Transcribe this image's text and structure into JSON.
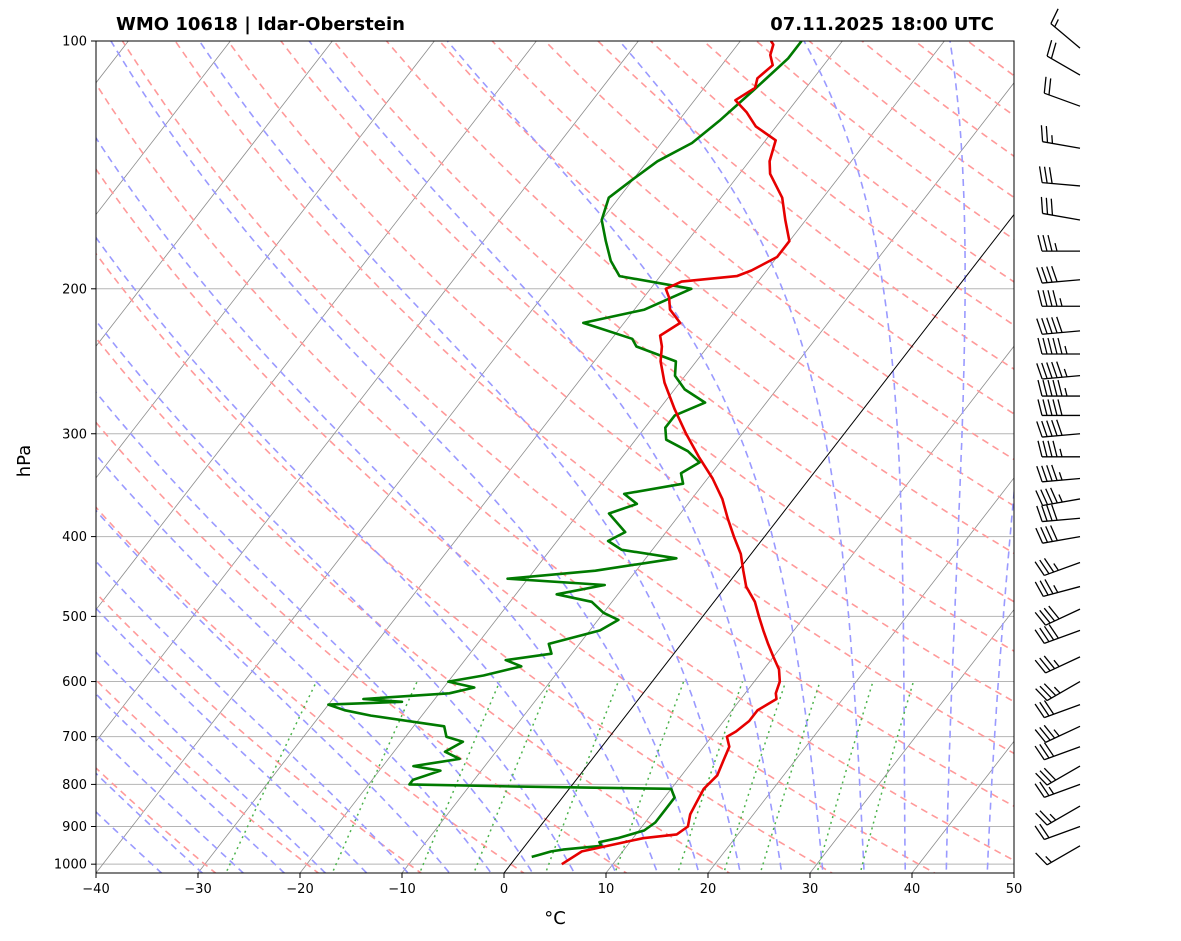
{
  "chart_data": {
    "type": "skew-t",
    "title_left": "WMO 10618 | Idar-Oberstein",
    "title_right": "07.11.2025 18:00 UTC",
    "xlabel": "°C",
    "ylabel": "hPa",
    "xlim": [
      -40,
      50
    ],
    "ylim": [
      1025,
      100
    ],
    "x_ticks": [
      -40,
      -30,
      -20,
      -10,
      0,
      10,
      20,
      30,
      40,
      50
    ],
    "y_ticks": [
      100,
      200,
      300,
      400,
      500,
      600,
      700,
      800,
      900,
      1000
    ],
    "y_scale": "log",
    "grid": true,
    "colors": {
      "temperature": "#e60000",
      "dewpoint": "#007a00",
      "dry_adiabats": "#ff9a9a",
      "moist_adiabats": "#9a9aff",
      "mixing_ratio": "#4cb34c",
      "isotherms": "#8c8c8c",
      "zero_isotherm": "#000000"
    },
    "series": [
      {
        "name": "Temperature",
        "points": [
          [
            1000,
            5
          ],
          [
            965,
            6
          ],
          [
            930,
            11
          ],
          [
            920,
            14
          ],
          [
            900,
            14.5
          ],
          [
            870,
            13.8
          ],
          [
            840,
            13.5
          ],
          [
            810,
            13.2
          ],
          [
            780,
            13.5
          ],
          [
            750,
            13
          ],
          [
            720,
            12.5
          ],
          [
            700,
            11.5
          ],
          [
            690,
            12
          ],
          [
            670,
            12.5
          ],
          [
            650,
            12.5
          ],
          [
            640,
            13
          ],
          [
            630,
            13.5
          ],
          [
            620,
            13
          ],
          [
            600,
            12.5
          ],
          [
            580,
            11.5
          ],
          [
            560,
            10
          ],
          [
            540,
            8.5
          ],
          [
            520,
            7
          ],
          [
            500,
            5.5
          ],
          [
            480,
            4
          ],
          [
            460,
            2
          ],
          [
            440,
            0.5
          ],
          [
            420,
            -1
          ],
          [
            400,
            -3
          ],
          [
            380,
            -5
          ],
          [
            360,
            -7
          ],
          [
            340,
            -9.5
          ],
          [
            320,
            -12.5
          ],
          [
            300,
            -15.5
          ],
          [
            280,
            -18.5
          ],
          [
            260,
            -21.5
          ],
          [
            245,
            -23.5
          ],
          [
            235,
            -24.5
          ],
          [
            228,
            -25.5
          ],
          [
            220,
            -24.5
          ],
          [
            212,
            -26.5
          ],
          [
            205,
            -27.5
          ],
          [
            200,
            -28.5
          ],
          [
            196,
            -27.5
          ],
          [
            193,
            -22.5
          ],
          [
            190,
            -21.5
          ],
          [
            183,
            -20
          ],
          [
            175,
            -20
          ],
          [
            165,
            -22
          ],
          [
            155,
            -24
          ],
          [
            145,
            -27
          ],
          [
            140,
            -28
          ],
          [
            132,
            -29
          ],
          [
            127,
            -32
          ],
          [
            122,
            -34
          ],
          [
            118,
            -36
          ],
          [
            114,
            -35
          ],
          [
            111,
            -35.5
          ],
          [
            107,
            -35
          ],
          [
            104,
            -36
          ],
          [
            101,
            -36.5
          ],
          [
            100,
            -37
          ]
        ]
      },
      {
        "name": "Dew point",
        "points": [
          [
            980,
            1.5
          ],
          [
            975,
            2
          ],
          [
            965,
            3
          ],
          [
            960,
            4
          ],
          [
            950,
            7.5
          ],
          [
            940,
            7
          ],
          [
            930,
            8.5
          ],
          [
            910,
            10.5
          ],
          [
            890,
            11
          ],
          [
            860,
            11
          ],
          [
            830,
            11
          ],
          [
            810,
            10
          ],
          [
            805,
            -5
          ],
          [
            800,
            -16
          ],
          [
            790,
            -16
          ],
          [
            770,
            -14
          ],
          [
            760,
            -17
          ],
          [
            745,
            -13
          ],
          [
            730,
            -15
          ],
          [
            710,
            -14
          ],
          [
            700,
            -16
          ],
          [
            680,
            -17
          ],
          [
            660,
            -25
          ],
          [
            650,
            -28
          ],
          [
            640,
            -30
          ],
          [
            635,
            -23
          ],
          [
            630,
            -27
          ],
          [
            620,
            -19
          ],
          [
            610,
            -17
          ],
          [
            600,
            -20
          ],
          [
            590,
            -17
          ],
          [
            575,
            -14
          ],
          [
            565,
            -16
          ],
          [
            555,
            -12
          ],
          [
            540,
            -13
          ],
          [
            520,
            -9
          ],
          [
            505,
            -8
          ],
          [
            495,
            -10
          ],
          [
            480,
            -12
          ],
          [
            470,
            -16
          ],
          [
            458,
            -12
          ],
          [
            450,
            -22
          ],
          [
            440,
            -14
          ],
          [
            425,
            -7
          ],
          [
            415,
            -13
          ],
          [
            405,
            -15
          ],
          [
            395,
            -14
          ],
          [
            375,
            -17
          ],
          [
            365,
            -15
          ],
          [
            355,
            -17
          ],
          [
            345,
            -12
          ],
          [
            335,
            -13
          ],
          [
            325,
            -12
          ],
          [
            315,
            -14
          ],
          [
            305,
            -17
          ],
          [
            295,
            -18
          ],
          [
            285,
            -18
          ],
          [
            275,
            -16
          ],
          [
            265,
            -19
          ],
          [
            255,
            -21
          ],
          [
            245,
            -22
          ],
          [
            235,
            -27
          ],
          [
            230,
            -28
          ],
          [
            220,
            -34
          ],
          [
            212,
            -29
          ],
          [
            200,
            -26
          ],
          [
            193,
            -34
          ],
          [
            185,
            -36
          ],
          [
            175,
            -38
          ],
          [
            165,
            -40
          ],
          [
            155,
            -41
          ],
          [
            147,
            -40
          ],
          [
            140,
            -39
          ],
          [
            133,
            -37
          ],
          [
            125,
            -36
          ],
          [
            115,
            -35
          ],
          [
            105,
            -34
          ],
          [
            100,
            -34
          ]
        ]
      }
    ],
    "wind_barbs": [
      {
        "p": 950,
        "speed_kt": 15,
        "dir": 240
      },
      {
        "p": 900,
        "speed_kt": 20,
        "dir": 250
      },
      {
        "p": 850,
        "speed_kt": 25,
        "dir": 240
      },
      {
        "p": 800,
        "speed_kt": 25,
        "dir": 250
      },
      {
        "p": 760,
        "speed_kt": 30,
        "dir": 240
      },
      {
        "p": 720,
        "speed_kt": 30,
        "dir": 250
      },
      {
        "p": 680,
        "speed_kt": 35,
        "dir": 245
      },
      {
        "p": 640,
        "speed_kt": 30,
        "dir": 250
      },
      {
        "p": 600,
        "speed_kt": 35,
        "dir": 240
      },
      {
        "p": 560,
        "speed_kt": 35,
        "dir": 245
      },
      {
        "p": 520,
        "speed_kt": 40,
        "dir": 250
      },
      {
        "p": 490,
        "speed_kt": 40,
        "dir": 245
      },
      {
        "p": 460,
        "speed_kt": 35,
        "dir": 255
      },
      {
        "p": 430,
        "speed_kt": 35,
        "dir": 250
      },
      {
        "p": 400,
        "speed_kt": 40,
        "dir": 260
      },
      {
        "p": 380,
        "speed_kt": 40,
        "dir": 265
      },
      {
        "p": 360,
        "speed_kt": 45,
        "dir": 260
      },
      {
        "p": 340,
        "speed_kt": 45,
        "dir": 265
      },
      {
        "p": 320,
        "speed_kt": 45,
        "dir": 270
      },
      {
        "p": 300,
        "speed_kt": 50,
        "dir": 265
      },
      {
        "p": 285,
        "speed_kt": 50,
        "dir": 270
      },
      {
        "p": 270,
        "speed_kt": 55,
        "dir": 270
      },
      {
        "p": 255,
        "speed_kt": 55,
        "dir": 265
      },
      {
        "p": 240,
        "speed_kt": 55,
        "dir": 270
      },
      {
        "p": 225,
        "speed_kt": 50,
        "dir": 265
      },
      {
        "p": 210,
        "speed_kt": 45,
        "dir": 270
      },
      {
        "p": 195,
        "speed_kt": 40,
        "dir": 265
      },
      {
        "p": 180,
        "speed_kt": 35,
        "dir": 270
      },
      {
        "p": 165,
        "speed_kt": 30,
        "dir": 280
      },
      {
        "p": 150,
        "speed_kt": 30,
        "dir": 275
      },
      {
        "p": 135,
        "speed_kt": 25,
        "dir": 280
      },
      {
        "p": 120,
        "speed_kt": 20,
        "dir": 290
      },
      {
        "p": 110,
        "speed_kt": 20,
        "dir": 300
      },
      {
        "p": 102,
        "speed_kt": 15,
        "dir": 310
      }
    ]
  }
}
